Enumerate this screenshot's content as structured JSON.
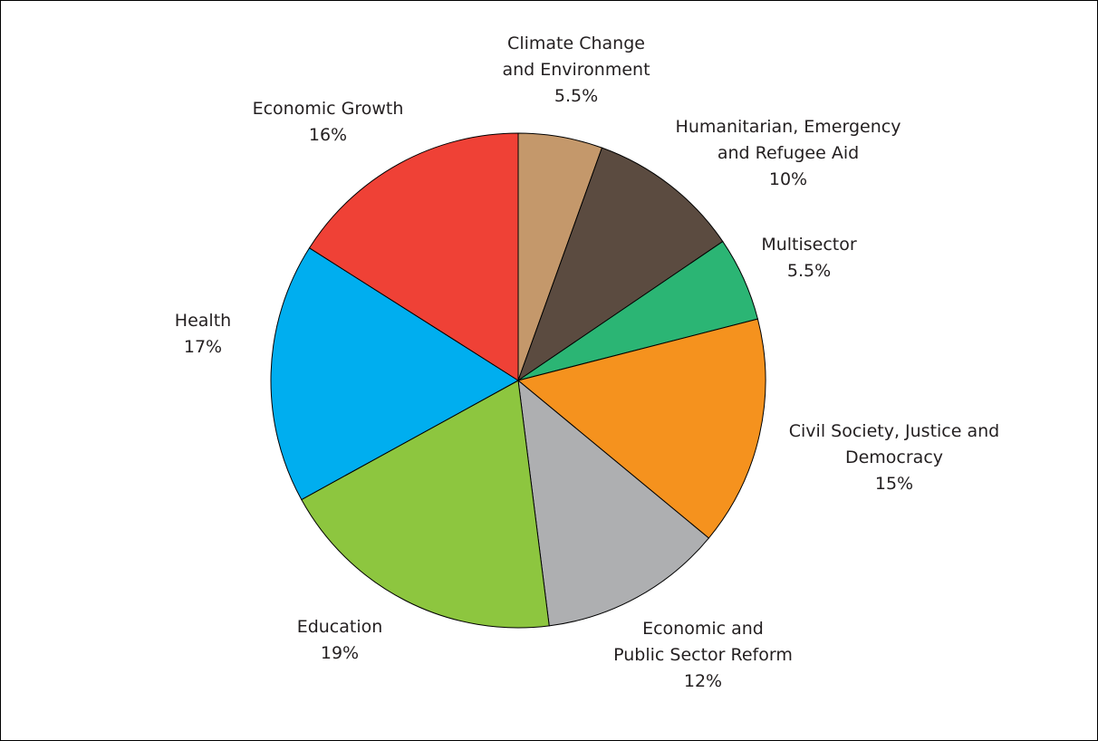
{
  "chart_data": {
    "type": "pie",
    "slices": [
      {
        "label": [
          "Climate Change",
          "and Environment"
        ],
        "value_label": "5.5%",
        "value": 5.5,
        "color": "#c4986b"
      },
      {
        "label": [
          "Humanitarian, Emergency",
          "and Refugee Aid"
        ],
        "value_label": "10%",
        "value": 10,
        "color": "#5b4b40"
      },
      {
        "label": [
          "Multisector"
        ],
        "value_label": "5.5%",
        "value": 5.5,
        "color": "#2bb574"
      },
      {
        "label": [
          "Civil Society, Justice and",
          "Democracy"
        ],
        "value_label": "15%",
        "value": 15,
        "color": "#f5921e"
      },
      {
        "label": [
          "Economic and",
          "Public Sector Reform"
        ],
        "value_label": "12%",
        "value": 12,
        "color": "#aeafb1"
      },
      {
        "label": [
          "Education"
        ],
        "value_label": "19%",
        "value": 19,
        "color": "#8dc63f"
      },
      {
        "label": [
          "Health"
        ],
        "value_label": "17%",
        "value": 17,
        "color": "#00aeef"
      },
      {
        "label": [
          "Economic Growth"
        ],
        "value_label": "16%",
        "value": 16,
        "color": "#ef4136"
      }
    ]
  }
}
